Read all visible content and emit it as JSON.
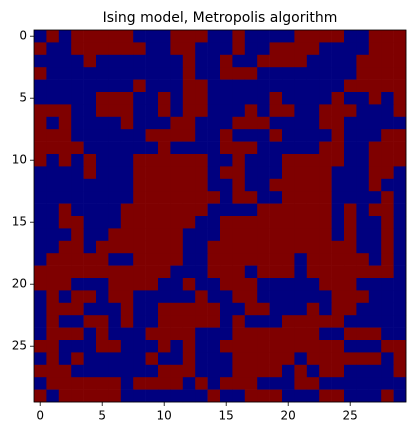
{
  "chart_data": {
    "type": "heatmap",
    "title": "Ising model, Metropolis algorithm",
    "xlim": [
      -0.5,
      29.5
    ],
    "ylim": [
      29.5,
      -0.5
    ],
    "xticks": [
      0,
      5,
      10,
      15,
      20,
      25
    ],
    "yticks": [
      0,
      5,
      10,
      15,
      20,
      25
    ],
    "vlim": [
      -1,
      1
    ],
    "colors": [
      "#00007f",
      "#7f0000"
    ],
    "z": [
      [
        -1,
        1,
        -1,
        1,
        1,
        1,
        1,
        1,
        -1,
        -1,
        -1,
        1,
        1,
        1,
        -1,
        -1,
        1,
        -1,
        -1,
        -1,
        -1,
        1,
        1,
        1,
        1,
        -1,
        -1,
        1,
        1,
        1
      ],
      [
        1,
        -1,
        -1,
        1,
        1,
        1,
        1,
        1,
        1,
        -1,
        -1,
        1,
        1,
        -1,
        -1,
        -1,
        1,
        -1,
        -1,
        1,
        1,
        1,
        1,
        -1,
        -1,
        -1,
        -1,
        1,
        1,
        1
      ],
      [
        -1,
        -1,
        -1,
        -1,
        1,
        -1,
        -1,
        -1,
        -1,
        -1,
        -1,
        -1,
        1,
        -1,
        -1,
        1,
        -1,
        -1,
        1,
        1,
        1,
        1,
        -1,
        -1,
        -1,
        -1,
        1,
        1,
        1,
        1
      ],
      [
        1,
        -1,
        -1,
        -1,
        -1,
        -1,
        -1,
        -1,
        -1,
        -1,
        -1,
        -1,
        1,
        -1,
        -1,
        1,
        1,
        1,
        -1,
        -1,
        -1,
        -1,
        -1,
        -1,
        -1,
        -1,
        1,
        1,
        1,
        1
      ],
      [
        -1,
        -1,
        -1,
        -1,
        -1,
        -1,
        -1,
        -1,
        1,
        -1,
        -1,
        -1,
        1,
        1,
        -1,
        -1,
        -1,
        -1,
        -1,
        -1,
        -1,
        -1,
        -1,
        -1,
        -1,
        1,
        1,
        1,
        1,
        1
      ],
      [
        -1,
        -1,
        -1,
        -1,
        -1,
        1,
        1,
        1,
        -1,
        -1,
        1,
        -1,
        1,
        1,
        -1,
        -1,
        -1,
        -1,
        -1,
        1,
        -1,
        -1,
        -1,
        -1,
        1,
        -1,
        -1,
        1,
        -1,
        1
      ],
      [
        1,
        1,
        1,
        -1,
        -1,
        1,
        1,
        1,
        -1,
        -1,
        1,
        -1,
        1,
        1,
        -1,
        -1,
        -1,
        1,
        -1,
        1,
        1,
        -1,
        -1,
        1,
        1,
        1,
        -1,
        -1,
        -1,
        1
      ],
      [
        1,
        -1,
        1,
        -1,
        -1,
        -1,
        -1,
        1,
        -1,
        -1,
        -1,
        1,
        1,
        -1,
        -1,
        -1,
        1,
        1,
        1,
        -1,
        -1,
        -1,
        -1,
        1,
        1,
        -1,
        -1,
        -1,
        -1,
        -1
      ],
      [
        1,
        1,
        1,
        -1,
        -1,
        -1,
        -1,
        -1,
        -1,
        1,
        1,
        1,
        1,
        -1,
        -1,
        1,
        -1,
        -1,
        -1,
        1,
        -1,
        -1,
        -1,
        -1,
        1,
        -1,
        -1,
        -1,
        1,
        1
      ],
      [
        1,
        1,
        1,
        1,
        -1,
        -1,
        -1,
        -1,
        -1,
        -1,
        1,
        -1,
        -1,
        -1,
        -1,
        1,
        1,
        1,
        -1,
        -1,
        -1,
        -1,
        -1,
        1,
        1,
        -1,
        -1,
        1,
        1,
        1
      ],
      [
        1,
        -1,
        1,
        -1,
        1,
        -1,
        -1,
        -1,
        1,
        1,
        1,
        1,
        1,
        1,
        -1,
        -1,
        1,
        -1,
        -1,
        -1,
        1,
        1,
        1,
        1,
        1,
        -1,
        -1,
        1,
        1,
        1
      ],
      [
        -1,
        -1,
        -1,
        -1,
        1,
        -1,
        -1,
        -1,
        1,
        1,
        1,
        1,
        1,
        1,
        -1,
        1,
        1,
        -1,
        -1,
        -1,
        1,
        1,
        1,
        1,
        -1,
        -1,
        -1,
        1,
        1,
        -1
      ],
      [
        -1,
        -1,
        -1,
        -1,
        -1,
        -1,
        -1,
        -1,
        1,
        1,
        1,
        1,
        1,
        1,
        -1,
        -1,
        1,
        -1,
        -1,
        1,
        1,
        1,
        1,
        1,
        -1,
        -1,
        -1,
        1,
        -1,
        -1
      ],
      [
        -1,
        -1,
        -1,
        -1,
        -1,
        -1,
        -1,
        -1,
        1,
        1,
        1,
        1,
        1,
        1,
        1,
        -1,
        1,
        1,
        -1,
        -1,
        1,
        1,
        1,
        1,
        -1,
        -1,
        -1,
        -1,
        1,
        -1
      ],
      [
        -1,
        -1,
        1,
        -1,
        -1,
        -1,
        -1,
        1,
        1,
        1,
        1,
        1,
        1,
        1,
        -1,
        -1,
        -1,
        -1,
        1,
        1,
        1,
        1,
        1,
        1,
        -1,
        1,
        -1,
        1,
        1,
        -1
      ],
      [
        -1,
        -1,
        1,
        1,
        -1,
        -1,
        -1,
        1,
        1,
        1,
        1,
        1,
        1,
        -1,
        -1,
        1,
        1,
        1,
        1,
        1,
        1,
        1,
        1,
        1,
        -1,
        1,
        -1,
        -1,
        1,
        -1
      ],
      [
        -1,
        -1,
        -1,
        1,
        -1,
        -1,
        1,
        1,
        1,
        1,
        1,
        1,
        -1,
        -1,
        -1,
        1,
        1,
        1,
        1,
        1,
        1,
        1,
        1,
        1,
        -1,
        1,
        -1,
        -1,
        1,
        -1
      ],
      [
        -1,
        -1,
        1,
        1,
        -1,
        1,
        1,
        1,
        1,
        1,
        1,
        1,
        -1,
        -1,
        1,
        1,
        1,
        1,
        1,
        1,
        1,
        1,
        1,
        1,
        1,
        1,
        -1,
        -1,
        1,
        -1
      ],
      [
        -1,
        1,
        1,
        1,
        1,
        1,
        -1,
        -1,
        1,
        1,
        1,
        1,
        -1,
        -1,
        1,
        1,
        1,
        1,
        1,
        1,
        1,
        -1,
        1,
        1,
        1,
        1,
        1,
        -1,
        1,
        -1
      ],
      [
        1,
        1,
        1,
        1,
        1,
        1,
        1,
        1,
        1,
        1,
        1,
        -1,
        -1,
        -1,
        1,
        1,
        1,
        -1,
        1,
        1,
        1,
        -1,
        1,
        1,
        1,
        1,
        1,
        1,
        1,
        -1
      ],
      [
        1,
        1,
        1,
        -1,
        -1,
        -1,
        1,
        1,
        1,
        1,
        -1,
        -1,
        1,
        -1,
        -1,
        1,
        1,
        1,
        -1,
        -1,
        -1,
        -1,
        -1,
        1,
        1,
        1,
        -1,
        -1,
        -1,
        -1
      ],
      [
        -1,
        1,
        -1,
        1,
        1,
        -1,
        1,
        1,
        -1,
        -1,
        -1,
        -1,
        -1,
        1,
        -1,
        -1,
        1,
        1,
        -1,
        -1,
        -1,
        -1,
        -1,
        -1,
        1,
        1,
        1,
        -1,
        -1,
        -1
      ],
      [
        -1,
        1,
        1,
        1,
        -1,
        -1,
        -1,
        1,
        -1,
        -1,
        1,
        1,
        1,
        1,
        1,
        -1,
        -1,
        1,
        1,
        -1,
        -1,
        -1,
        1,
        -1,
        1,
        1,
        -1,
        -1,
        -1,
        -1
      ],
      [
        -1,
        1,
        -1,
        -1,
        1,
        1,
        -1,
        1,
        -1,
        -1,
        1,
        1,
        1,
        1,
        1,
        -1,
        1,
        -1,
        -1,
        -1,
        1,
        1,
        1,
        1,
        1,
        -1,
        -1,
        -1,
        -1,
        -1
      ],
      [
        -1,
        1,
        1,
        1,
        -1,
        1,
        -1,
        -1,
        -1,
        1,
        1,
        1,
        1,
        -1,
        -1,
        -1,
        1,
        1,
        1,
        1,
        1,
        1,
        1,
        -1,
        -1,
        1,
        1,
        1,
        -1,
        -1
      ],
      [
        1,
        1,
        -1,
        -1,
        -1,
        1,
        1,
        -1,
        -1,
        -1,
        1,
        -1,
        1,
        -1,
        -1,
        1,
        1,
        1,
        1,
        1,
        1,
        1,
        1,
        1,
        1,
        -1,
        -1,
        -1,
        1,
        1
      ],
      [
        -1,
        1,
        -1,
        1,
        -1,
        -1,
        -1,
        -1,
        -1,
        1,
        -1,
        -1,
        1,
        -1,
        -1,
        -1,
        1,
        1,
        1,
        1,
        1,
        -1,
        1,
        1,
        1,
        1,
        1,
        1,
        -1,
        1
      ],
      [
        1,
        1,
        1,
        -1,
        -1,
        -1,
        -1,
        -1,
        -1,
        -1,
        1,
        1,
        1,
        -1,
        -1,
        -1,
        1,
        1,
        1,
        1,
        -1,
        1,
        -1,
        1,
        1,
        -1,
        -1,
        -1,
        -1,
        1
      ],
      [
        -1,
        1,
        1,
        1,
        1,
        1,
        1,
        -1,
        1,
        1,
        1,
        1,
        -1,
        1,
        -1,
        1,
        1,
        1,
        -1,
        -1,
        -1,
        1,
        1,
        -1,
        -1,
        -1,
        -1,
        -1,
        -1,
        -1
      ],
      [
        1,
        -1,
        1,
        1,
        1,
        1,
        1,
        -1,
        -1,
        -1,
        -1,
        -1,
        -1,
        -1,
        1,
        -1,
        -1,
        1,
        1,
        1,
        -1,
        -1,
        -1,
        1,
        1,
        -1,
        -1,
        -1,
        1,
        -1
      ]
    ]
  }
}
